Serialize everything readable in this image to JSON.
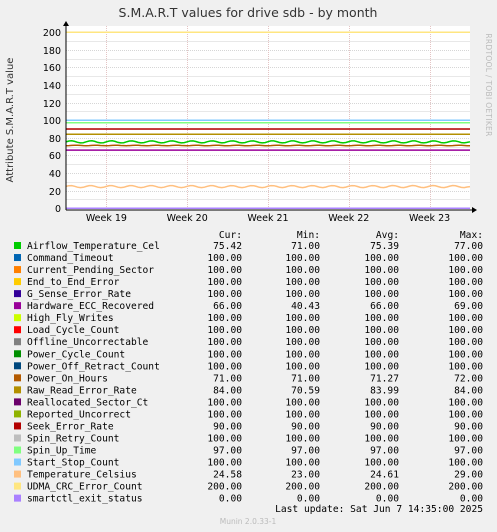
{
  "header": {
    "title": "S.M.A.R.T values for drive sdb - by month",
    "side_label": "RRDTOOL / TOBI OETIKER"
  },
  "chart_data": {
    "type": "line",
    "title": "S.M.A.R.T values for drive sdb - by month",
    "ylabel": "Attribute S.M.A.R.T value",
    "xlabel": "",
    "ylim": [
      -2,
      207
    ],
    "yticks": [
      0,
      20,
      40,
      60,
      80,
      100,
      120,
      140,
      160,
      180,
      200
    ],
    "ytick_labels": [
      "0",
      "20",
      "40",
      "60",
      "80",
      "100",
      "120",
      "140",
      "160",
      "180",
      "200"
    ],
    "x_categories": [
      "Week 19",
      "Week 20",
      "Week 21",
      "Week 22",
      "Week 23"
    ],
    "grid": true,
    "columns": [
      "Cur:",
      "Min:",
      "Avg:",
      "Max:"
    ],
    "series": [
      {
        "name": "Airflow_Temperature_Cel",
        "color": "#00cc00",
        "cur": "75.42",
        "min": "71.00",
        "avg": "75.39",
        "max": "77.00"
      },
      {
        "name": "Command_Timeout",
        "color": "#0066b3",
        "cur": "100.00",
        "min": "100.00",
        "avg": "100.00",
        "max": "100.00"
      },
      {
        "name": "Current_Pending_Sector",
        "color": "#ff8000",
        "cur": "100.00",
        "min": "100.00",
        "avg": "100.00",
        "max": "100.00"
      },
      {
        "name": "End_to_End_Error",
        "color": "#ffcc00",
        "cur": "100.00",
        "min": "100.00",
        "avg": "100.00",
        "max": "100.00"
      },
      {
        "name": "G_Sense_Error_Rate",
        "color": "#330099",
        "cur": "100.00",
        "min": "100.00",
        "avg": "100.00",
        "max": "100.00"
      },
      {
        "name": "Hardware_ECC_Recovered",
        "color": "#990099",
        "cur": "66.00",
        "min": "40.43",
        "avg": "66.00",
        "max": "69.00"
      },
      {
        "name": "High_Fly_Writes",
        "color": "#ccff00",
        "cur": "100.00",
        "min": "100.00",
        "avg": "100.00",
        "max": "100.00"
      },
      {
        "name": "Load_Cycle_Count",
        "color": "#ff0000",
        "cur": "100.00",
        "min": "100.00",
        "avg": "100.00",
        "max": "100.00"
      },
      {
        "name": "Offline_Uncorrectable",
        "color": "#808080",
        "cur": "100.00",
        "min": "100.00",
        "avg": "100.00",
        "max": "100.00"
      },
      {
        "name": "Power_Cycle_Count",
        "color": "#008f00",
        "cur": "100.00",
        "min": "100.00",
        "avg": "100.00",
        "max": "100.00"
      },
      {
        "name": "Power_Off_Retract_Count",
        "color": "#00487d",
        "cur": "100.00",
        "min": "100.00",
        "avg": "100.00",
        "max": "100.00"
      },
      {
        "name": "Power_On_Hours",
        "color": "#b35a00",
        "cur": "71.00",
        "min": "71.00",
        "avg": "71.27",
        "max": "72.00"
      },
      {
        "name": "Raw_Read_Error_Rate",
        "color": "#b38f00",
        "cur": "84.00",
        "min": "70.59",
        "avg": "83.99",
        "max": "84.00"
      },
      {
        "name": "Reallocated_Sector_Ct",
        "color": "#6b006b",
        "cur": "100.00",
        "min": "100.00",
        "avg": "100.00",
        "max": "100.00"
      },
      {
        "name": "Reported_Uncorrect",
        "color": "#8fb300",
        "cur": "100.00",
        "min": "100.00",
        "avg": "100.00",
        "max": "100.00"
      },
      {
        "name": "Seek_Error_Rate",
        "color": "#b30000",
        "cur": "90.00",
        "min": "90.00",
        "avg": "90.00",
        "max": "90.00"
      },
      {
        "name": "Spin_Retry_Count",
        "color": "#bebebe",
        "cur": "100.00",
        "min": "100.00",
        "avg": "100.00",
        "max": "100.00"
      },
      {
        "name": "Spin_Up_Time",
        "color": "#80ff80",
        "cur": "97.00",
        "min": "97.00",
        "avg": "97.00",
        "max": "97.00"
      },
      {
        "name": "Start_Stop_Count",
        "color": "#80c9ff",
        "cur": "100.00",
        "min": "100.00",
        "avg": "100.00",
        "max": "100.00"
      },
      {
        "name": "Temperature_Celsius",
        "color": "#ffc080",
        "cur": "24.58",
        "min": "23.00",
        "avg": "24.61",
        "max": "29.00"
      },
      {
        "name": "UDMA_CRC_Error_Count",
        "color": "#ffe680",
        "cur": "200.00",
        "min": "200.00",
        "avg": "200.00",
        "max": "200.00"
      },
      {
        "name": "smartctl_exit_status",
        "color": "#aa80ff",
        "cur": "0.00",
        "min": "0.00",
        "avg": "0.00",
        "max": "0.00"
      }
    ]
  },
  "footer": {
    "last_update": "Last update:  Sat Jun  7 14:35:00 2025",
    "version": "Munin 2.0.33-1"
  }
}
